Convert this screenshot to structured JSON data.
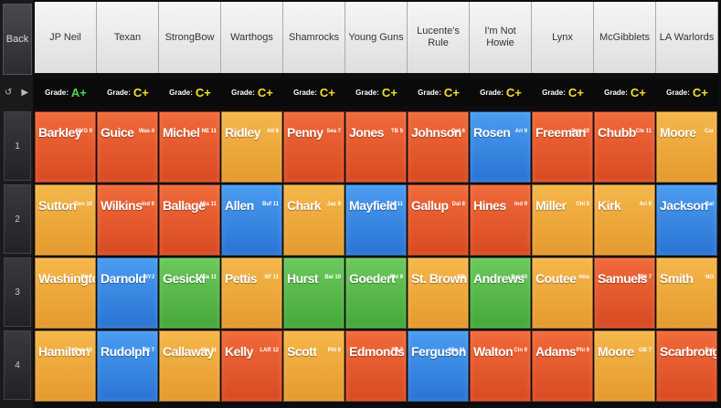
{
  "back_label": "Back",
  "teams": [
    "JP Neil",
    "Texan",
    "StrongBow",
    "Warthogs",
    "Shamrocks",
    "Young Guns",
    "Lucente's Rule",
    "I'm Not Howie",
    "Lynx",
    "McGibblets",
    "LA Warlords"
  ],
  "grade_label": "Grade:",
  "grades": [
    {
      "value": "A+",
      "color": "#4cd94c"
    },
    {
      "value": "C+",
      "color": "#f2e12a"
    },
    {
      "value": "C+",
      "color": "#f2e12a"
    },
    {
      "value": "C+",
      "color": "#f2e12a"
    },
    {
      "value": "C+",
      "color": "#f2e12a"
    },
    {
      "value": "C+",
      "color": "#f2e12a"
    },
    {
      "value": "C+",
      "color": "#f2e12a"
    },
    {
      "value": "C+",
      "color": "#f2e12a"
    },
    {
      "value": "C+",
      "color": "#f2e12a"
    },
    {
      "value": "C+",
      "color": "#f2e12a"
    },
    {
      "value": "C+",
      "color": "#f2e12a"
    }
  ],
  "rounds": [
    "1",
    "2",
    "3",
    "4"
  ],
  "picks": [
    [
      {
        "last": "Barkley",
        "pos": "NYG 9",
        "color": "red"
      },
      {
        "last": "Guice",
        "pos": "Was 4",
        "color": "red"
      },
      {
        "last": "Michel",
        "pos": "NE 11",
        "color": "red"
      },
      {
        "last": "Ridley",
        "pos": "Atl 8",
        "color": "orange"
      },
      {
        "last": "Penny",
        "pos": "Sea 7",
        "color": "red"
      },
      {
        "last": "Jones",
        "pos": "TB 5",
        "color": "red"
      },
      {
        "last": "Johnson",
        "pos": "Det 6",
        "color": "red"
      },
      {
        "last": "Rosen",
        "pos": "Ari 9",
        "color": "blue"
      },
      {
        "last": "Freeman",
        "pos": "Den 10",
        "color": "red"
      },
      {
        "last": "Chubb",
        "pos": "Cle 11",
        "color": "red"
      },
      {
        "last": "Moore",
        "pos": "Car",
        "color": "orange"
      }
    ],
    [
      {
        "last": "Sutton",
        "pos": "Den 10",
        "color": "orange"
      },
      {
        "last": "Wilkins",
        "pos": "Ind 9",
        "color": "red"
      },
      {
        "last": "Ballage",
        "pos": "Mia 11",
        "color": "red"
      },
      {
        "last": "Allen",
        "pos": "Buf 11",
        "color": "blue"
      },
      {
        "last": "Chark",
        "pos": "Jac 9",
        "color": "orange"
      },
      {
        "last": "Mayfield",
        "pos": "Cle 11",
        "color": "blue"
      },
      {
        "last": "Gallup",
        "pos": "Dal 8",
        "color": "red"
      },
      {
        "last": "Hines",
        "pos": "Ind 9",
        "color": "red"
      },
      {
        "last": "Miller",
        "pos": "Chi 5",
        "color": "orange"
      },
      {
        "last": "Kirk",
        "pos": "Ari 9",
        "color": "orange"
      },
      {
        "last": "Jackson",
        "pos": "Bal",
        "color": "blue"
      }
    ],
    [
      {
        "last": "Washington",
        "pos": "Pit 7",
        "color": "orange"
      },
      {
        "last": "Darnold",
        "pos": "NYJ",
        "color": "blue"
      },
      {
        "last": "Gesicki",
        "pos": "Mia 11",
        "color": "green"
      },
      {
        "last": "Pettis",
        "pos": "SF 11",
        "color": "orange"
      },
      {
        "last": "Hurst",
        "pos": "Bal 10",
        "color": "green"
      },
      {
        "last": "Goedert",
        "pos": "Phi 9",
        "color": "green"
      },
      {
        "last": "St. Brown",
        "pos": "GB",
        "color": "orange"
      },
      {
        "last": "Andrews",
        "pos": "Bal 10",
        "color": "green"
      },
      {
        "last": "Coutee",
        "pos": "Hou",
        "color": "orange"
      },
      {
        "last": "Samuels",
        "pos": "Pit 7",
        "color": "red"
      },
      {
        "last": "Smith",
        "pos": "NO",
        "color": "orange"
      }
    ],
    [
      {
        "last": "Hamilton",
        "pos": "Den 10",
        "color": "orange"
      },
      {
        "last": "Rudolph",
        "pos": "Pit 7",
        "color": "blue"
      },
      {
        "last": "Callaway",
        "pos": "Cle 11",
        "color": "orange"
      },
      {
        "last": "Kelly",
        "pos": "LAR 12",
        "color": "red"
      },
      {
        "last": "Scott",
        "pos": "Phi 9",
        "color": "orange"
      },
      {
        "last": "Edmonds",
        "pos": "Pit 7",
        "color": "red"
      },
      {
        "last": "Ferguson",
        "pos": "Mia 11",
        "color": "blue"
      },
      {
        "last": "Walton",
        "pos": "Cin 9",
        "color": "red"
      },
      {
        "last": "Adams",
        "pos": "Phi 9",
        "color": "red"
      },
      {
        "last": "Moore",
        "pos": "GB 7",
        "color": "orange"
      },
      {
        "last": "Scarbrough",
        "pos": "Dal",
        "color": "red"
      }
    ]
  ]
}
